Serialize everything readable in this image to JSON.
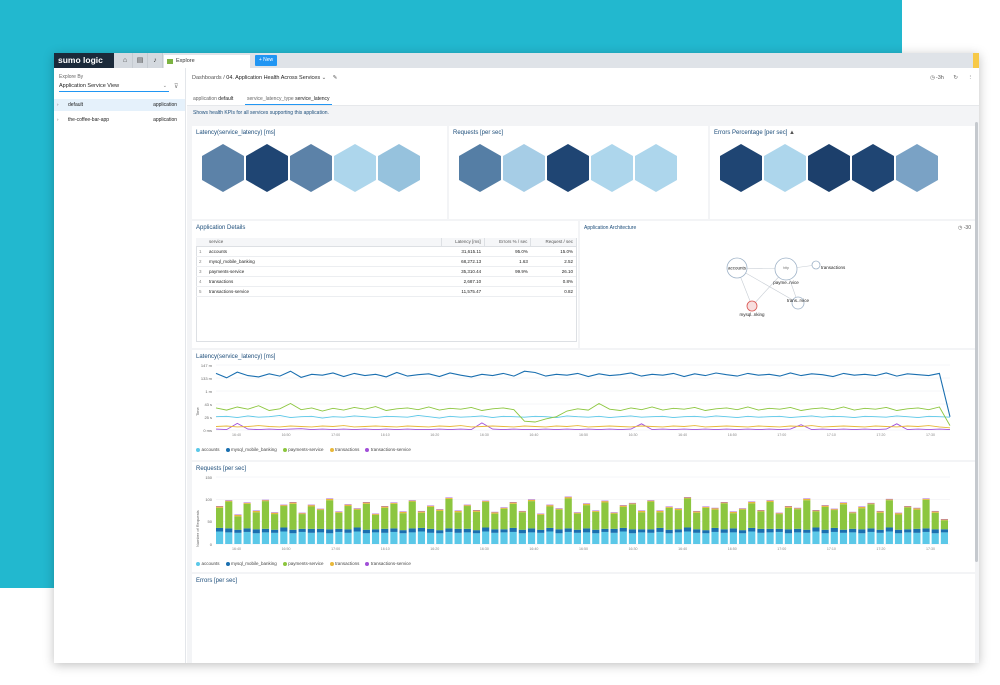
{
  "app": {
    "logo": "sumo logic",
    "tab_label": "Explore",
    "new_button": "+ New"
  },
  "sidebar": {
    "explore_by_label": "Explore By",
    "explore_by_value": "Application Service View",
    "items": [
      {
        "name": "default",
        "kind": "application",
        "selected": true
      },
      {
        "name": "the-coffee-bar-app",
        "kind": "application",
        "selected": false
      }
    ]
  },
  "header": {
    "breadcrumb_root": "Dashboards",
    "title": "04. Application Health Across Services",
    "time_range": "-3h"
  },
  "filters": [
    {
      "key": "application",
      "value": "default"
    },
    {
      "key": "service_latency_type",
      "value": "service_latency"
    }
  ],
  "description": "Shows health KPIs for all services supporting this application.",
  "kpi_panels": [
    {
      "title": "Latency(service_latency) [ms]",
      "hex_colors": [
        "#5c82a8",
        "#1f4573",
        "#5c82a8",
        "#add6ec",
        "#96c2dd"
      ],
      "warning": false
    },
    {
      "title": "Requests [per sec]",
      "hex_colors": [
        "#557ea5",
        "#a6cde6",
        "#1f4573",
        "#add6ec",
        "#add6ec"
      ],
      "warning": false
    },
    {
      "title": "Errors Percentage [per sec]",
      "hex_colors": [
        "#1f4573",
        "#add6ec",
        "#1c3f6b",
        "#1f4573",
        "#7aa2c5"
      ],
      "warning": true
    }
  ],
  "details": {
    "title": "Application Details",
    "columns": [
      "service",
      "Latency [ms]",
      "Errors % / sec",
      "Request / sec"
    ],
    "rows": [
      {
        "idx": "1",
        "service": "accounts",
        "latency": "31,615.11",
        "errors": "95.0%",
        "requests": "15.0%"
      },
      {
        "idx": "2",
        "service": "mysql_mobile_banking",
        "latency": "68,272.13",
        "errors": "1.63",
        "requests": "2.52"
      },
      {
        "idx": "3",
        "service": "payments-service",
        "latency": "35,310.44",
        "errors": "99.9%",
        "requests": "26.10"
      },
      {
        "idx": "4",
        "service": "transactions",
        "latency": "2,687.10",
        "errors": "",
        "requests": "0.8%"
      },
      {
        "idx": "5",
        "service": "transactions-service",
        "latency": "11,575.47",
        "errors": "",
        "requests": "0.82"
      }
    ]
  },
  "architecture": {
    "title": "Application Architecture",
    "time_range": "-30",
    "nodes": [
      "accounts",
      "transactions",
      "payme..rvice",
      "trans..rvice",
      "mysql..nking"
    ],
    "hub_label": "http"
  },
  "colors": {
    "accounts": "#5bc8e8",
    "mysql_mobile_banking": "#1a6fb0",
    "payments-service": "#8cc63f",
    "transactions": "#e8b83a",
    "transactions-service": "#a14fd8"
  },
  "chart_data": [
    {
      "type": "line",
      "title": "Latency(service_latency) [ms]",
      "ylabel": "Time",
      "y_ticks": [
        "147 m",
        "133 m",
        "1 m",
        "43 s",
        "25 s",
        "0 ms"
      ],
      "x_ticks": [
        "16:40",
        "16:50",
        "17:00",
        "16:10",
        "16:20",
        "16:30",
        "16:40",
        "16:50",
        "16:30",
        "16:40",
        "16:50",
        "17:00",
        "17:10",
        "17:20",
        "17:30"
      ],
      "series": [
        {
          "name": "accounts",
          "values": [
            30,
            31,
            28,
            32,
            29,
            30,
            33,
            28,
            30,
            31,
            27,
            30,
            29,
            32,
            30,
            28,
            31,
            30,
            29,
            33,
            30,
            27,
            31,
            29,
            30,
            32,
            28,
            31,
            30,
            29,
            31,
            30,
            28,
            32,
            30,
            29,
            31,
            28,
            30,
            32,
            29,
            30,
            31,
            28,
            30,
            31,
            29,
            32,
            30,
            28,
            31,
            29,
            30,
            31,
            28,
            30,
            32,
            29,
            31,
            30,
            28,
            31,
            30,
            29,
            32,
            30,
            28,
            31,
            30,
            29
          ]
        },
        {
          "name": "mysql_mobile_banking",
          "values": [
            128,
            118,
            131,
            123,
            120,
            127,
            122,
            133,
            119,
            126,
            124,
            129,
            121,
            128,
            123,
            126,
            120,
            130,
            122,
            125,
            127,
            121,
            129,
            124,
            120,
            126,
            123,
            128,
            122,
            133,
            130,
            122,
            126,
            124,
            128,
            121,
            127,
            123,
            125,
            129,
            122,
            126,
            124,
            128,
            121,
            127,
            123,
            129,
            125,
            122,
            128,
            124,
            126,
            122,
            129,
            123,
            127,
            125,
            121,
            128,
            124,
            126,
            123,
            129,
            122,
            127,
            125,
            123,
            128,
            30
          ]
        },
        {
          "name": "payments-service",
          "values": [
            50,
            45,
            52,
            47,
            55,
            44,
            48,
            60,
            46,
            50,
            43,
            49,
            45,
            51,
            47,
            53,
            44,
            48,
            50,
            46,
            52,
            45,
            49,
            47,
            51,
            44,
            48,
            50,
            46,
            20,
            18,
            25,
            30,
            43,
            48,
            45,
            60,
            47,
            44,
            50,
            46,
            52,
            45,
            49,
            47,
            51,
            44,
            48,
            50,
            46,
            52,
            45,
            49,
            47,
            51,
            44,
            48,
            50,
            46,
            52,
            45,
            49,
            47,
            51,
            44,
            48,
            50,
            46,
            52,
            10
          ]
        },
        {
          "name": "transactions",
          "values": [
            8,
            9,
            7,
            8,
            10,
            8,
            7,
            9,
            8,
            7,
            9,
            8,
            10,
            7,
            8,
            9,
            8,
            7,
            9,
            8,
            7,
            9,
            8,
            10,
            7,
            8,
            9,
            8,
            7,
            9,
            8,
            7,
            9,
            8,
            10,
            7,
            8,
            9,
            8,
            7,
            9,
            8,
            7,
            9,
            8,
            10,
            7,
            8,
            9,
            8,
            7,
            9,
            8,
            7,
            9,
            8,
            10,
            7,
            8,
            9,
            8,
            7,
            9,
            8,
            7,
            9,
            8,
            10,
            7,
            5
          ]
        },
        {
          "name": "transactions-service",
          "values": [
            2,
            1,
            15,
            2,
            1,
            2,
            1,
            2,
            3,
            1,
            2,
            1,
            2,
            1,
            2,
            1,
            2,
            1,
            2,
            1,
            1,
            2,
            1,
            2,
            1,
            16,
            2,
            1,
            2,
            1,
            1,
            2,
            1,
            2,
            1,
            2,
            1,
            2,
            1,
            2,
            14,
            1,
            2,
            1,
            2,
            1,
            2,
            1,
            2,
            1,
            2,
            1,
            2,
            1,
            2,
            12,
            1,
            2,
            1,
            2,
            1,
            2,
            1,
            2,
            14,
            1,
            2,
            1,
            2,
            1
          ]
        }
      ]
    },
    {
      "type": "bar",
      "stacked": true,
      "title": "Requests [per sec]",
      "ylabel": "Number of Requests",
      "y_ticks": [
        "150",
        "100",
        "50",
        "0"
      ],
      "x_ticks": [
        "16:40",
        "16:50",
        "17:00",
        "16:10",
        "16:20",
        "16:30",
        "16:40",
        "16:50",
        "16:30",
        "16:40",
        "16:50",
        "17:00",
        "17:10",
        "17:20",
        "17:30"
      ],
      "series": [
        {
          "name": "accounts",
          "values": [
            28,
            26,
            25,
            27,
            24,
            26,
            25,
            28,
            24,
            27,
            25,
            26,
            24,
            27,
            25,
            28,
            24,
            26,
            25,
            27,
            24,
            26,
            28,
            25,
            24,
            27,
            25,
            26,
            24,
            28,
            25,
            26,
            27,
            24,
            26,
            25,
            28,
            24,
            27,
            25,
            26,
            24,
            27,
            25,
            28,
            24,
            26,
            25,
            27,
            24,
            26,
            28,
            25,
            24,
            27,
            25,
            26,
            24,
            28,
            25,
            26,
            27,
            24,
            26,
            25,
            28,
            24,
            27,
            25,
            26,
            24,
            27,
            25,
            28,
            24,
            26,
            25,
            27,
            24,
            26
          ]
        },
        {
          "name": "mysql_mobile_banking",
          "values": [
            8,
            9,
            7,
            8,
            9,
            8,
            7,
            9,
            8,
            7,
            9,
            8,
            9,
            7,
            8,
            9,
            8,
            7,
            9,
            8,
            7,
            9,
            8,
            9,
            7,
            8,
            9,
            8,
            7,
            9,
            8,
            7,
            9,
            8,
            9,
            7,
            8,
            9,
            8,
            7,
            9,
            8,
            7,
            9,
            8,
            9,
            7,
            8,
            9,
            8,
            7,
            9,
            8,
            7,
            9,
            8,
            9,
            7,
            8,
            9,
            8,
            7,
            9,
            8,
            7,
            9,
            8,
            9,
            7,
            8,
            9,
            8,
            7,
            9,
            8,
            7,
            9,
            8,
            9,
            7
          ]
        },
        {
          "name": "payments-service",
          "values": [
            45,
            60,
            30,
            55,
            38,
            62,
            35,
            48,
            58,
            33,
            50,
            42,
            65,
            36,
            52,
            40,
            58,
            32,
            47,
            55,
            38,
            60,
            34,
            49,
            43,
            66,
            37,
            51,
            41,
            57,
            35,
            46,
            54,
            39,
            61,
            33,
            48,
            44,
            67,
            36,
            52,
            40,
            59,
            34,
            47,
            56,
            38,
            62,
            35,
            49,
            43,
            65,
            37,
            50,
            41,
            58,
            34,
            46,
            55,
            39,
            60,
            33,
            48,
            44,
            66,
            36,
            51,
            40,
            57,
            35,
            47,
            54,
            38,
            61,
            34,
            49,
            43,
            64,
            37,
            20
          ]
        },
        {
          "name": "transactions",
          "values": [
            3,
            2,
            3,
            2,
            3,
            2,
            3,
            2,
            3,
            2,
            3,
            2,
            3,
            2,
            3,
            2,
            3,
            2,
            3,
            2,
            3,
            2,
            3,
            2,
            3,
            2,
            3,
            2,
            3,
            2,
            3,
            2,
            3,
            2,
            3,
            2,
            3,
            2,
            3,
            2,
            3,
            2,
            3,
            2,
            3,
            2,
            3,
            2,
            3,
            2,
            3,
            2,
            3,
            2,
            3,
            2,
            3,
            2,
            3,
            2,
            3,
            2,
            3,
            2,
            3,
            2,
            3,
            2,
            3,
            2,
            3,
            2,
            3,
            2,
            3,
            2,
            3,
            2,
            3,
            2
          ]
        },
        {
          "name": "transactions-service",
          "values": [
            1,
            1,
            1,
            1,
            1,
            1,
            1,
            1,
            1,
            1,
            1,
            1,
            1,
            1,
            1,
            1,
            1,
            1,
            1,
            1,
            1,
            1,
            1,
            1,
            1,
            1,
            1,
            1,
            1,
            1,
            1,
            1,
            1,
            1,
            1,
            1,
            1,
            1,
            1,
            1,
            1,
            1,
            1,
            1,
            1,
            1,
            1,
            1,
            1,
            1,
            1,
            1,
            1,
            1,
            1,
            1,
            1,
            1,
            1,
            1,
            1,
            1,
            1,
            1,
            1,
            1,
            1,
            1,
            1,
            1,
            1,
            1,
            1,
            1,
            1,
            1,
            1,
            1,
            1,
            1
          ]
        }
      ]
    }
  ],
  "errors_panel": {
    "title": "Errors [per sec]"
  }
}
